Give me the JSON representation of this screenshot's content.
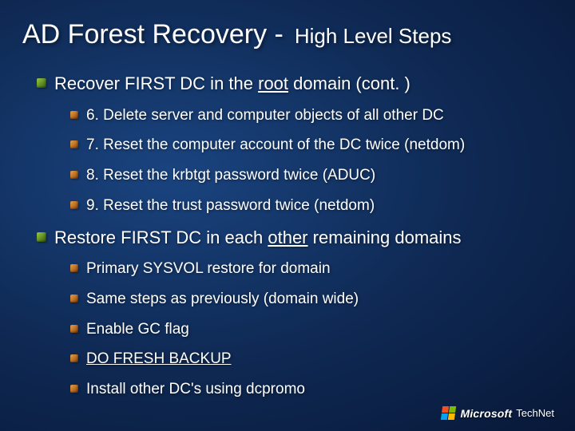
{
  "title": {
    "main": "AD Forest Recovery -",
    "sub": "High Level Steps"
  },
  "section1": {
    "heading_pre": "Recover FIRST DC in the ",
    "heading_u": "root",
    "heading_post": " domain (cont. )",
    "items": [
      "6. Delete server and computer objects of all other DC",
      "7. Reset the computer account of the DC twice (netdom)",
      "8. Reset the krbtgt password twice (ADUC)",
      "9. Reset the trust password twice (netdom)"
    ]
  },
  "section2": {
    "heading_pre": "Restore FIRST DC in each ",
    "heading_u": "other",
    "heading_post": " remaining domains",
    "items": [
      {
        "text": "Primary SYSVOL restore for domain",
        "underline": false
      },
      {
        "text": "Same steps as previously (domain wide)",
        "underline": false
      },
      {
        "text": "Enable GC flag",
        "underline": false
      },
      {
        "text": "DO FRESH BACKUP",
        "underline": true
      },
      {
        "text": "Install other DC's using dcpromo",
        "underline": false
      }
    ]
  },
  "branding": {
    "company": "Microsoft",
    "product": "TechNet"
  },
  "style": {
    "bg_gradient_inner": "#1a4480",
    "bg_gradient_mid": "#0f2a55",
    "bg_gradient_outer": "#081838",
    "text_color": "#ffffff",
    "title_fontsize": 34,
    "subtitle_fontsize": 26,
    "l1_fontsize": 22,
    "l2_fontsize": 19,
    "l1_bullet_color": "#9cc94a",
    "l2_bullet_color": "#e8a34a",
    "ms_flag_colors": [
      "#f25022",
      "#7fba00",
      "#00a4ef",
      "#ffb900"
    ]
  }
}
